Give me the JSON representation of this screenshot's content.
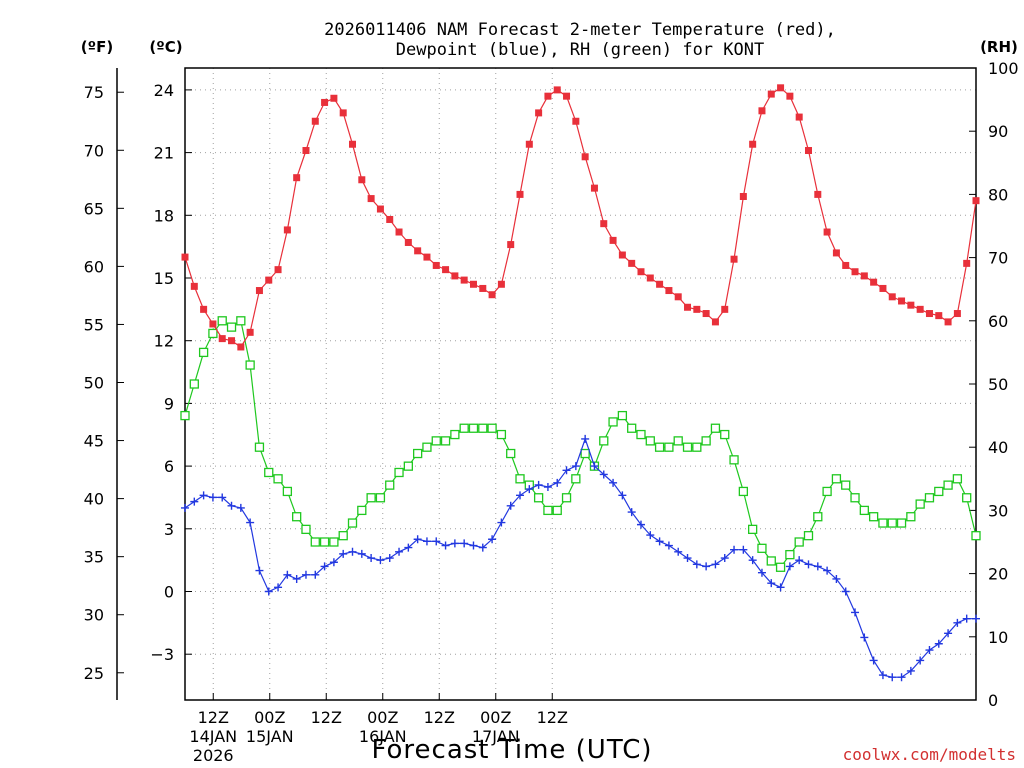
{
  "chart_data": {
    "type": "line",
    "title_line1": "2026011406 NAM Forecast 2-meter Temperature (red),",
    "title_line2": "Dewpoint (blue), RH (green) for KONT",
    "xlabel": "Forecast Time (UTC)",
    "credit": "coolwx.com/modelts",
    "unit_labels": {
      "fahrenheit": "(ºF)",
      "celsius": "(ºC)",
      "rh": "(RH)"
    },
    "colors": {
      "temperature": "#e8303a",
      "dewpoint": "#2238e0",
      "rh": "#1fc81f"
    },
    "grid": true,
    "x_hours": [
      0,
      168
    ],
    "x_ticks": [
      {
        "hour": 6,
        "label": "12Z",
        "sub1": "14JAN",
        "sub2": "2026"
      },
      {
        "hour": 18,
        "label": "00Z",
        "sub1": "15JAN",
        "sub2": ""
      },
      {
        "hour": 30,
        "label": "12Z",
        "sub1": "",
        "sub2": ""
      },
      {
        "hour": 42,
        "label": "00Z",
        "sub1": "16JAN",
        "sub2": ""
      },
      {
        "hour": 54,
        "label": "12Z",
        "sub1": "",
        "sub2": ""
      },
      {
        "hour": 66,
        "label": "00Z",
        "sub1": "17JAN",
        "sub2": ""
      },
      {
        "hour": 78,
        "label": "12Z",
        "sub1": "",
        "sub2": ""
      }
    ],
    "celsius_ticks": [
      "-3",
      "0",
      "3",
      "6",
      "9",
      "12",
      "15",
      "18",
      "21",
      "24"
    ],
    "fahrenheit_ticks": [
      "25",
      "30",
      "35",
      "40",
      "45",
      "50",
      "55",
      "60",
      "65",
      "70",
      "75"
    ],
    "rh_ticks": [
      "0",
      "10",
      "20",
      "30",
      "40",
      "50",
      "60",
      "70",
      "80",
      "90",
      "100"
    ],
    "ylim_celsius": [
      -5,
      25.2
    ],
    "ylim_rh": [
      0,
      100
    ],
    "temperature": [
      16.0,
      14.6,
      13.5,
      12.8,
      12.1,
      12.0,
      11.7,
      12.4,
      14.4,
      14.9,
      15.4,
      17.3,
      19.8,
      21.1,
      22.5,
      23.4,
      23.6,
      22.9,
      21.4,
      19.7,
      18.8,
      18.3,
      17.8,
      17.2,
      16.7,
      16.3,
      16.0,
      15.6,
      15.4,
      15.1,
      14.9,
      14.7,
      14.5,
      14.2,
      14.7,
      16.6,
      19.0,
      21.4,
      22.9,
      23.7,
      24.0,
      23.7,
      22.5,
      20.8,
      19.3,
      17.6,
      16.8,
      16.1,
      15.7,
      15.3,
      15.0,
      14.7,
      14.4,
      14.1,
      13.6,
      13.5,
      13.3,
      12.9,
      13.5,
      15.9,
      18.9,
      21.4,
      23.0,
      23.8,
      24.1,
      23.7,
      22.7,
      21.1,
      19.0,
      17.2,
      16.2,
      15.6,
      15.3,
      15.1,
      14.8,
      14.5,
      14.1,
      13.9,
      13.7,
      13.5,
      13.3,
      13.2,
      12.9,
      13.3,
      15.7,
      18.7
    ],
    "dewpoint": [
      4.0,
      4.3,
      4.6,
      4.5,
      4.5,
      4.1,
      4.0,
      3.3,
      1.0,
      0.0,
      0.2,
      0.8,
      0.6,
      0.8,
      0.8,
      1.2,
      1.4,
      1.8,
      1.9,
      1.8,
      1.6,
      1.5,
      1.6,
      1.9,
      2.1,
      2.5,
      2.4,
      2.4,
      2.2,
      2.3,
      2.3,
      2.2,
      2.1,
      2.5,
      3.3,
      4.1,
      4.6,
      4.9,
      5.1,
      5.0,
      5.2,
      5.8,
      6.0,
      7.3,
      6.0,
      5.6,
      5.2,
      4.6,
      3.8,
      3.2,
      2.7,
      2.4,
      2.2,
      1.9,
      1.6,
      1.3,
      1.2,
      1.3,
      1.6,
      2.0,
      2.0,
      1.5,
      0.9,
      0.4,
      0.2,
      1.2,
      1.5,
      1.3,
      1.2,
      1.0,
      0.6,
      0.0,
      -1.0,
      -2.2,
      -3.3,
      -4.0,
      -4.1,
      -4.1,
      -3.8,
      -3.3,
      -2.8,
      -2.5,
      -2.0,
      -1.5,
      -1.3,
      -1.3
    ],
    "rh": [
      45,
      50,
      55,
      58,
      60,
      59,
      60,
      53,
      40,
      36,
      35,
      33,
      29,
      27,
      25,
      25,
      25,
      26,
      28,
      30,
      32,
      32,
      34,
      36,
      37,
      39,
      40,
      41,
      41,
      42,
      43,
      43,
      43,
      43,
      42,
      39,
      35,
      34,
      32,
      30,
      30,
      32,
      35,
      39,
      37,
      41,
      44,
      45,
      43,
      42,
      41,
      40,
      40,
      41,
      40,
      40,
      41,
      43,
      42,
      38,
      33,
      27,
      24,
      22,
      21,
      23,
      25,
      26,
      29,
      33,
      35,
      34,
      32,
      30,
      29,
      28,
      28,
      28,
      29,
      31,
      32,
      33,
      34,
      35,
      32,
      26
    ]
  }
}
